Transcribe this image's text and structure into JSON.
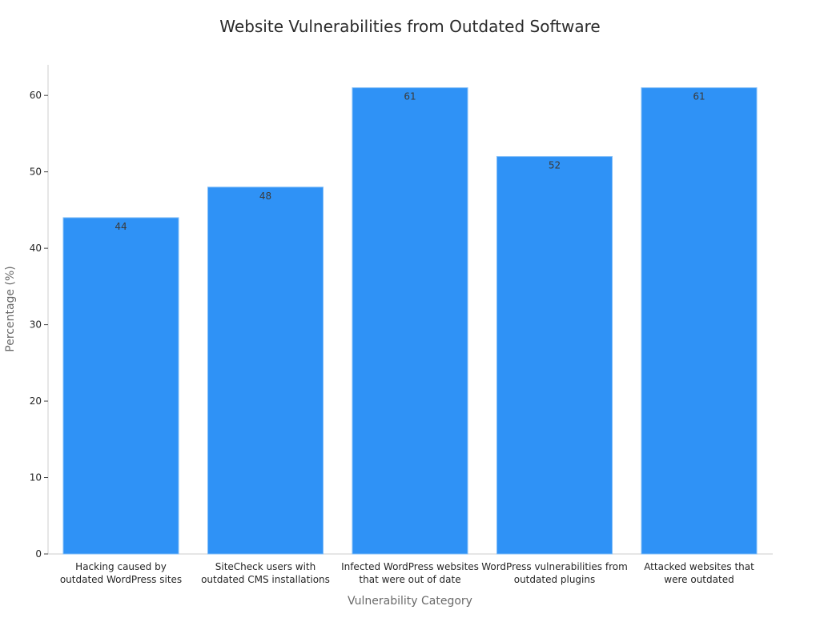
{
  "chart_data": {
    "type": "bar",
    "title": "Website Vulnerabilities from Outdated Software",
    "xlabel": "Vulnerability Category",
    "ylabel": "Percentage (%)",
    "categories": [
      "Hacking caused by\noutdated WordPress sites",
      "SiteCheck users with\noutdated CMS installations",
      "Infected WordPress websites\nthat were out of date",
      "WordPress vulnerabilities from\noutdated plugins",
      "Attacked websites that\nwere outdated"
    ],
    "values": [
      44,
      48,
      61,
      52,
      61
    ],
    "data_labels": [
      "44",
      "48",
      "61",
      "52",
      "61"
    ],
    "ylim": [
      0,
      64
    ],
    "yticks": [
      0,
      10,
      20,
      30,
      40,
      50,
      60
    ],
    "grid": false,
    "legend": "none",
    "colors": {
      "bar": "#2f92f6",
      "bar_edge": "#7fbcf7",
      "axis": "#cccccc",
      "tick_text": "#262626",
      "label_text": "#6a6a6a",
      "title_text": "#2b2b2b",
      "data_label_text": "#3a3a3a"
    }
  }
}
